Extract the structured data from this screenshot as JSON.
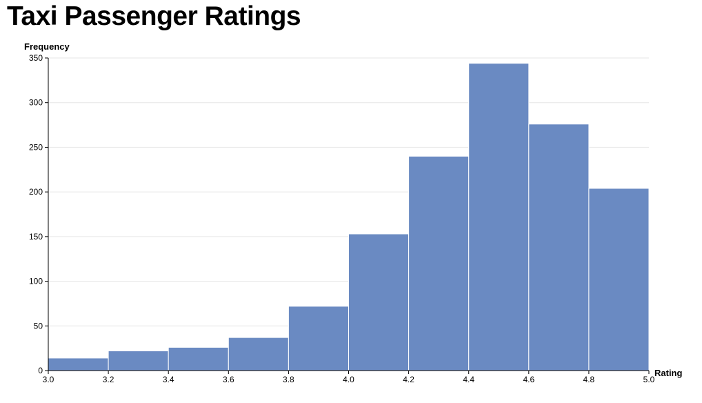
{
  "chart_data": {
    "type": "bar",
    "title": "Taxi Passenger Ratings",
    "xlabel": "Rating",
    "ylabel": "Frequency",
    "bins": [
      {
        "x0": 3.0,
        "x1": 3.2,
        "count": 14
      },
      {
        "x0": 3.2,
        "x1": 3.4,
        "count": 22
      },
      {
        "x0": 3.4,
        "x1": 3.6,
        "count": 26
      },
      {
        "x0": 3.6,
        "x1": 3.8,
        "count": 37
      },
      {
        "x0": 3.8,
        "x1": 4.0,
        "count": 72
      },
      {
        "x0": 4.0,
        "x1": 4.2,
        "count": 153
      },
      {
        "x0": 4.2,
        "x1": 4.4,
        "count": 240
      },
      {
        "x0": 4.4,
        "x1": 4.6,
        "count": 344
      },
      {
        "x0": 4.6,
        "x1": 4.8,
        "count": 276
      },
      {
        "x0": 4.8,
        "x1": 5.0,
        "count": 204
      }
    ],
    "xticks": [
      "3.0",
      "3.2",
      "3.4",
      "3.6",
      "3.8",
      "4.0",
      "4.2",
      "4.4",
      "4.6",
      "4.8",
      "5.0"
    ],
    "yticks": [
      "0",
      "50",
      "100",
      "150",
      "200",
      "250",
      "300",
      "350"
    ],
    "xlim": [
      3.0,
      5.0
    ],
    "ylim": [
      0,
      350
    ],
    "grid": true,
    "colors": {
      "bar": "#6a8ac2",
      "bar_edge": "#ffffff",
      "grid": "#e6e6e6",
      "axis": "#000000"
    }
  }
}
